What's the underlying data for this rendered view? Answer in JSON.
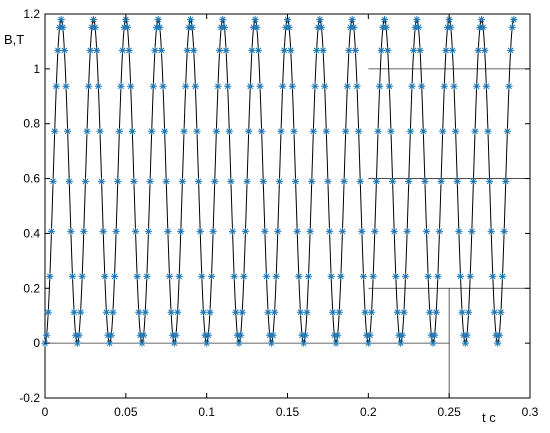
{
  "chart_data": {
    "type": "line",
    "title": "",
    "xlabel": "t c",
    "ylabel": "B,T",
    "xlim": [
      0,
      0.3
    ],
    "ylim": [
      -0.2,
      1.2
    ],
    "xticks": [
      "0",
      "0.05",
      "0.1",
      "0.15",
      "0.2",
      "0.25",
      "0.3"
    ],
    "yticks": [
      "-0.2",
      "0",
      "0.2",
      "0.4",
      "0.6",
      "0.8",
      "1",
      "1.2"
    ],
    "series": [
      {
        "style": "line",
        "color": "#000000",
        "function": "0.59*(1-cos(2*pi*50*t))",
        "amplitude": 0.59,
        "offset": 0.59,
        "frequency_hz": 50,
        "t_start": 0,
        "t_end": 0.29
      },
      {
        "style": "markers",
        "marker": "asterisk",
        "color": "#1f77b4",
        "function": "0.59*(1-cos(2*pi*50*t))",
        "sample_step": 0.001,
        "t_start": 0,
        "t_end": 0.29
      }
    ],
    "grid_segments": [
      {
        "orientation": "horizontal",
        "y": 0,
        "x_from": 0,
        "x_to": 0.25
      },
      {
        "orientation": "horizontal",
        "y": 1.0,
        "x_from": 0.2,
        "x_to": 0.3
      },
      {
        "orientation": "horizontal",
        "y": 0.6,
        "x_from": 0.2,
        "x_to": 0.3
      },
      {
        "orientation": "horizontal",
        "y": 0.2,
        "x_from": 0.2,
        "x_to": 0.3
      },
      {
        "orientation": "vertical",
        "x": 0.25,
        "y_from": -0.2,
        "y_to": 0.2
      }
    ]
  }
}
